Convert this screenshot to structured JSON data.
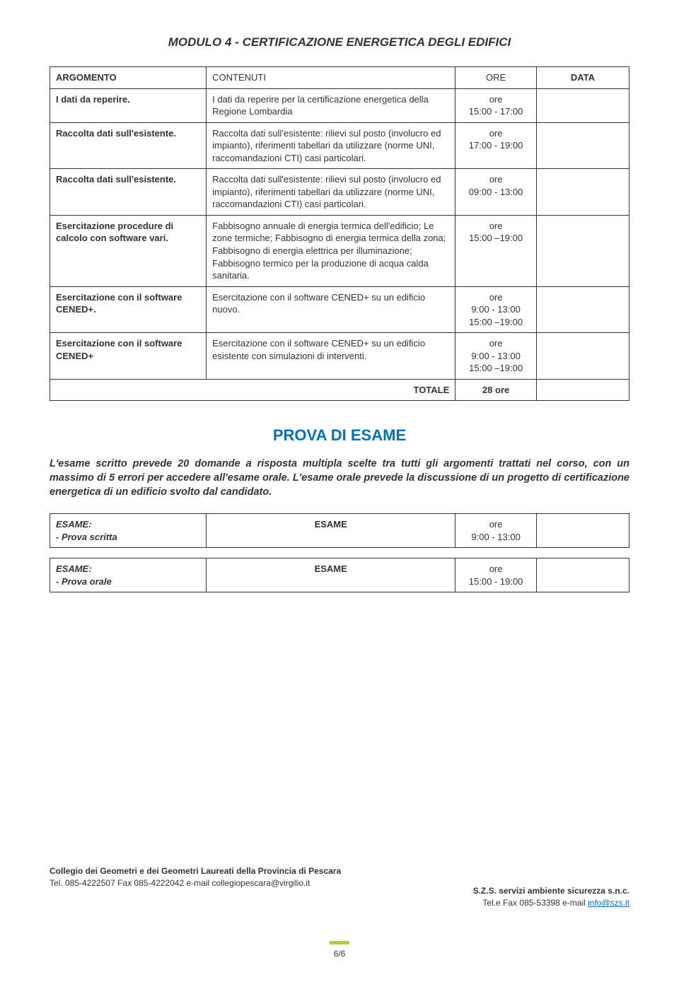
{
  "module": {
    "title": "MODULO 4 - CERTIFICAZIONE ENERGETICA DEGLI EDIFICI",
    "headers": {
      "arg": "ARGOMENTO",
      "cont": "CONTENUTI",
      "ore": "ORE",
      "data": "DATA"
    },
    "rows": [
      {
        "arg": "I dati da reperire.",
        "cont": "I dati da reperire per la certificazione energetica della Regione Lombardia",
        "ore": "ore\n15:00 - 17:00"
      },
      {
        "arg": "Raccolta dati sull'esistente.",
        "cont": "Raccolta dati sull'esistente: rilievi sul posto (involucro ed impianto), riferimenti tabellari da utilizzare (norme UNI, raccomandazioni CTI) casi particolari.",
        "ore": "ore\n17:00 - 19:00"
      },
      {
        "arg": "Raccolta dati sull'esistente.",
        "cont": "Raccolta dati sull'esistente: rilievi sul posto (involucro ed impianto), riferimenti tabellari da utilizzare (norme UNI, raccomandazioni CTI) casi particolari.",
        "ore": "ore\n09:00 - 13:00"
      },
      {
        "arg": "Esercitazione procedure di calcolo con software vari.",
        "cont": "Fabbisogno annuale di energia termica dell'edificio; Le zone termiche; Fabbisogno di energia termica della zona; Fabbisogno di energia elettrica per illuminazione; Fabbisogno termico per la produzione di acqua calda sanitaria.",
        "ore": "ore\n15:00 –19:00"
      },
      {
        "arg": "Esercitazione con il software CENED+.",
        "cont": "Esercitazione con il software CENED+ su un edificio nuovo.",
        "ore": "ore\n9:00 - 13:00\n15:00 –19:00"
      },
      {
        "arg": "Esercitazione con il software CENED+",
        "cont": "Esercitazione con il software CENED+ su un edificio esistente con simulazioni di interventi.",
        "ore": "ore\n9:00 - 13:00\n15:00 –19:00"
      }
    ],
    "totale_label": "TOTALE",
    "totale_val": "28 ore"
  },
  "exam": {
    "title": "PROVA DI ESAME",
    "desc": "L'esame scritto prevede 20 domande a risposta multipla scelte tra tutti gli argomenti trattati nel corso, con un massimo di 5 errori per accedere all'esame orale. L'esame orale prevede la discussione di un progetto di certificazione energetica di un edificio svolto dal candidato.",
    "rows": [
      {
        "label": "ESAME:\n- Prova scritta",
        "mid": "ESAME",
        "ore": "ore\n9:00 - 13:00"
      },
      {
        "label": "ESAME:\n- Prova orale",
        "mid": "ESAME",
        "ore": "ore\n15:00 - 19:00"
      }
    ]
  },
  "footer": {
    "left1": "Collegio dei Geometri e dei Geometri Laureati della Provincia di Pescara",
    "left2": "Tel. 085-4222507  Fax 085-4222042  e-mail collegiopescara@virgilio.it",
    "right1": "S.Z.S. servizi ambiente sicurezza s.n.c.",
    "right2_pre": "Tel.e Fax  085-53398  e-mail ",
    "right2_link": "info@szs.it"
  },
  "page_num": "6/6",
  "colors": {
    "title_blue": "#0070c0",
    "bar_green": "#b5c937",
    "link_blue": "#0070c0",
    "border": "#333333"
  }
}
